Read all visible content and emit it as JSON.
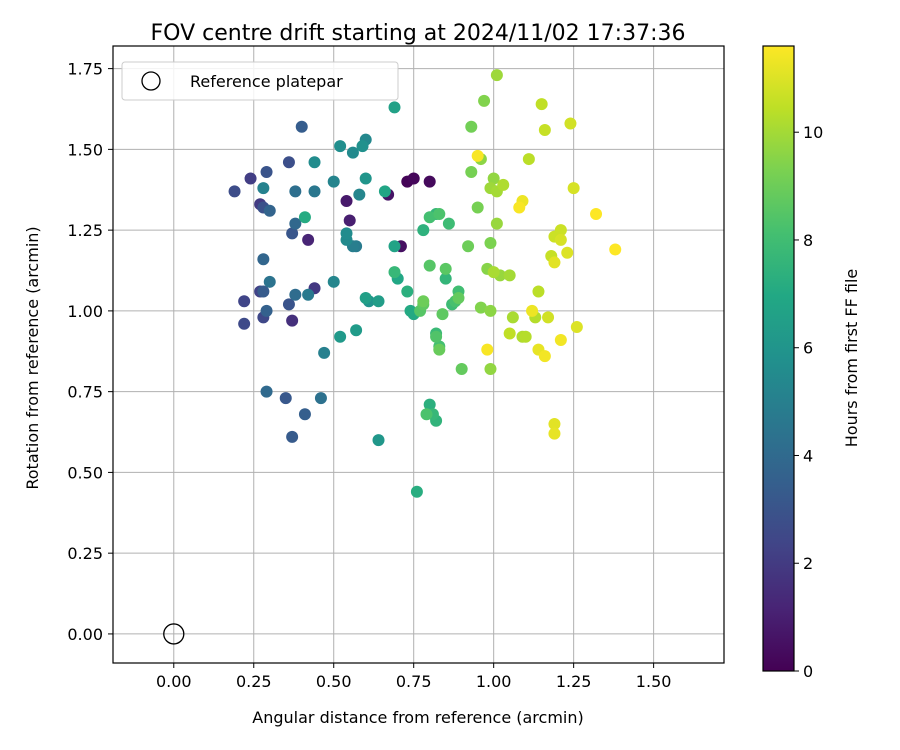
{
  "chart_data": {
    "type": "scatter",
    "title": "FOV centre drift starting at 2024/11/02 17:37:36",
    "xlabel": "Angular distance from reference (arcmin)",
    "ylabel": "Rotation from reference (arcmin)",
    "xlim": [
      -0.19,
      1.72
    ],
    "ylim": [
      -0.09,
      1.82
    ],
    "xticks": [
      0.0,
      0.25,
      0.5,
      0.75,
      1.0,
      1.25,
      1.5
    ],
    "xtick_labels": [
      "0.00",
      "0.25",
      "0.50",
      "0.75",
      "1.00",
      "1.25",
      "1.50"
    ],
    "yticks": [
      0.0,
      0.25,
      0.5,
      0.75,
      1.0,
      1.25,
      1.5,
      1.75
    ],
    "ytick_labels": [
      "0.00",
      "0.25",
      "0.50",
      "0.75",
      "1.00",
      "1.25",
      "1.50",
      "1.75"
    ],
    "grid": true,
    "legend": {
      "placement": "upper-left",
      "entries": [
        "Reference platepar"
      ]
    },
    "reference_point": {
      "x": 0.0,
      "y": 0.0
    },
    "colorbar": {
      "label": "Hours from first FF file",
      "colormap": "viridis",
      "range": [
        0,
        11.6
      ],
      "ticks": [
        0,
        2,
        4,
        6,
        8,
        10
      ],
      "tick_labels": [
        "0",
        "2",
        "4",
        "6",
        "8",
        "10"
      ]
    },
    "series": [
      {
        "points": [
          [
            0.73,
            1.4,
            0.1
          ],
          [
            0.75,
            1.41,
            0.2
          ],
          [
            0.8,
            1.4,
            0.3
          ],
          [
            0.71,
            1.2,
            0.5
          ],
          [
            0.67,
            1.36,
            0.6
          ],
          [
            0.54,
            1.34,
            0.8
          ],
          [
            0.55,
            1.28,
            1.0
          ],
          [
            0.42,
            1.22,
            1.2
          ],
          [
            0.37,
            0.97,
            1.6
          ],
          [
            0.44,
            1.07,
            1.9
          ],
          [
            0.27,
            1.33,
            2.0
          ],
          [
            0.24,
            1.41,
            2.1
          ],
          [
            0.27,
            1.06,
            2.3
          ],
          [
            0.22,
            1.03,
            2.4
          ],
          [
            0.28,
            0.98,
            2.5
          ],
          [
            0.22,
            0.96,
            2.6
          ],
          [
            0.19,
            1.37,
            2.7
          ],
          [
            0.36,
            1.46,
            2.8
          ],
          [
            0.28,
            1.32,
            2.9
          ],
          [
            0.36,
            1.02,
            3.0
          ],
          [
            0.29,
            1.43,
            3.0
          ],
          [
            0.37,
            1.24,
            3.1
          ],
          [
            0.35,
            0.73,
            3.2
          ],
          [
            0.37,
            0.61,
            3.3
          ],
          [
            0.28,
            1.06,
            3.3
          ],
          [
            0.4,
            1.57,
            3.4
          ],
          [
            0.41,
            0.68,
            3.5
          ],
          [
            0.29,
            1.0,
            3.6
          ],
          [
            0.3,
            1.31,
            3.7
          ],
          [
            0.28,
            1.16,
            3.8
          ],
          [
            0.38,
            1.27,
            3.9
          ],
          [
            0.29,
            0.75,
            4.0
          ],
          [
            0.38,
            1.05,
            4.1
          ],
          [
            0.38,
            1.37,
            4.2
          ],
          [
            0.46,
            0.73,
            4.3
          ],
          [
            0.3,
            1.09,
            4.4
          ],
          [
            0.44,
            1.37,
            4.6
          ],
          [
            0.42,
            1.05,
            4.7
          ],
          [
            0.57,
            1.2,
            4.8
          ],
          [
            0.56,
            1.2,
            4.9
          ],
          [
            0.47,
            0.87,
            5.0
          ],
          [
            0.28,
            1.38,
            5.1
          ],
          [
            0.5,
            1.4,
            5.2
          ],
          [
            0.5,
            1.09,
            5.3
          ],
          [
            0.58,
            1.36,
            5.3
          ],
          [
            0.6,
            1.53,
            5.4
          ],
          [
            0.56,
            1.49,
            5.5
          ],
          [
            0.54,
            1.22,
            5.5
          ],
          [
            0.44,
            1.46,
            5.6
          ],
          [
            0.54,
            1.24,
            5.6
          ],
          [
            0.52,
            1.51,
            5.7
          ],
          [
            0.59,
            1.51,
            5.8
          ],
          [
            0.61,
            1.03,
            5.9
          ],
          [
            0.6,
            1.41,
            6.0
          ],
          [
            0.64,
            0.6,
            6.1
          ],
          [
            0.52,
            0.92,
            6.2
          ],
          [
            0.57,
            0.94,
            6.3
          ],
          [
            0.64,
            1.03,
            6.4
          ],
          [
            0.6,
            1.04,
            6.5
          ],
          [
            0.69,
            1.63,
            6.6
          ],
          [
            0.69,
            1.2,
            6.7
          ],
          [
            0.66,
            1.37,
            6.8
          ],
          [
            0.7,
            1.1,
            6.9
          ],
          [
            0.75,
            0.99,
            7.0
          ],
          [
            0.74,
            1.0,
            7.0
          ],
          [
            0.41,
            1.29,
            7.1
          ],
          [
            0.76,
            0.44,
            7.2
          ],
          [
            0.73,
            1.06,
            7.3
          ],
          [
            0.8,
            0.71,
            7.3
          ],
          [
            0.78,
            1.25,
            7.4
          ],
          [
            0.82,
            0.66,
            7.5
          ],
          [
            0.85,
            1.1,
            7.6
          ],
          [
            0.82,
            1.3,
            7.6
          ],
          [
            0.81,
            0.68,
            7.7
          ],
          [
            0.69,
            1.12,
            7.7
          ],
          [
            0.82,
            0.93,
            7.8
          ],
          [
            0.87,
            1.02,
            7.9
          ],
          [
            0.86,
            1.27,
            7.9
          ],
          [
            0.89,
            1.06,
            8.0
          ],
          [
            0.83,
            0.89,
            8.1
          ],
          [
            0.8,
            1.29,
            8.1
          ],
          [
            0.88,
            1.03,
            8.2
          ],
          [
            0.83,
            1.3,
            8.3
          ],
          [
            0.79,
            0.68,
            8.3
          ],
          [
            0.82,
            0.92,
            8.4
          ],
          [
            0.77,
            1.0,
            8.5
          ],
          [
            0.8,
            1.14,
            8.5
          ],
          [
            0.85,
            1.13,
            8.6
          ],
          [
            0.78,
            1.02,
            8.7
          ],
          [
            0.84,
            0.99,
            8.7
          ],
          [
            0.89,
            1.04,
            8.8
          ],
          [
            0.9,
            0.82,
            8.8
          ],
          [
            0.83,
            0.88,
            8.9
          ],
          [
            0.78,
            1.03,
            9.0
          ],
          [
            0.92,
            1.2,
            9.0
          ],
          [
            0.93,
            1.57,
            9.1
          ],
          [
            0.95,
            1.32,
            9.2
          ],
          [
            0.93,
            1.43,
            9.2
          ],
          [
            0.99,
            1.21,
            9.3
          ],
          [
            0.96,
            1.01,
            9.4
          ],
          [
            0.97,
            1.65,
            9.4
          ],
          [
            0.98,
            1.13,
            9.5
          ],
          [
            0.96,
            1.47,
            9.6
          ],
          [
            0.99,
            1.0,
            9.6
          ],
          [
            0.99,
            0.82,
            9.7
          ],
          [
            1.0,
            1.41,
            9.7
          ],
          [
            1.01,
            1.27,
            9.8
          ],
          [
            1.02,
            1.11,
            9.8
          ],
          [
            0.99,
            1.38,
            9.9
          ],
          [
            1.01,
            1.73,
            9.9
          ],
          [
            1.01,
            1.37,
            10.0
          ],
          [
            1.05,
            1.11,
            10.0
          ],
          [
            1.0,
            1.12,
            10.1
          ],
          [
            1.06,
            0.98,
            10.1
          ],
          [
            1.03,
            1.39,
            10.2
          ],
          [
            1.09,
            0.92,
            10.2
          ],
          [
            1.1,
            0.92,
            10.3
          ],
          [
            1.13,
            0.98,
            10.3
          ],
          [
            1.14,
            1.06,
            10.4
          ],
          [
            1.11,
            1.47,
            10.4
          ],
          [
            1.05,
            0.93,
            10.5
          ],
          [
            1.15,
            1.64,
            10.5
          ],
          [
            1.16,
            1.56,
            10.6
          ],
          [
            1.18,
            1.17,
            10.6
          ],
          [
            1.19,
            1.23,
            10.7
          ],
          [
            1.21,
            1.25,
            10.7
          ],
          [
            1.17,
            0.98,
            10.8
          ],
          [
            1.24,
            1.58,
            10.8
          ],
          [
            1.21,
            1.22,
            10.9
          ],
          [
            1.25,
            1.38,
            10.9
          ],
          [
            1.26,
            0.95,
            11.0
          ],
          [
            1.23,
            1.18,
            11.0
          ],
          [
            1.19,
            1.15,
            11.1
          ],
          [
            1.19,
            0.65,
            11.1
          ],
          [
            1.19,
            0.62,
            11.2
          ],
          [
            1.14,
            0.88,
            11.2
          ],
          [
            1.09,
            1.34,
            11.3
          ],
          [
            1.12,
            1.0,
            11.3
          ],
          [
            1.21,
            0.91,
            11.4
          ],
          [
            1.16,
            0.86,
            11.4
          ],
          [
            1.08,
            1.32,
            11.5
          ],
          [
            0.98,
            0.88,
            11.5
          ],
          [
            0.95,
            1.48,
            11.5
          ],
          [
            1.32,
            1.3,
            11.6
          ],
          [
            1.38,
            1.19,
            11.6
          ]
        ]
      }
    ]
  }
}
